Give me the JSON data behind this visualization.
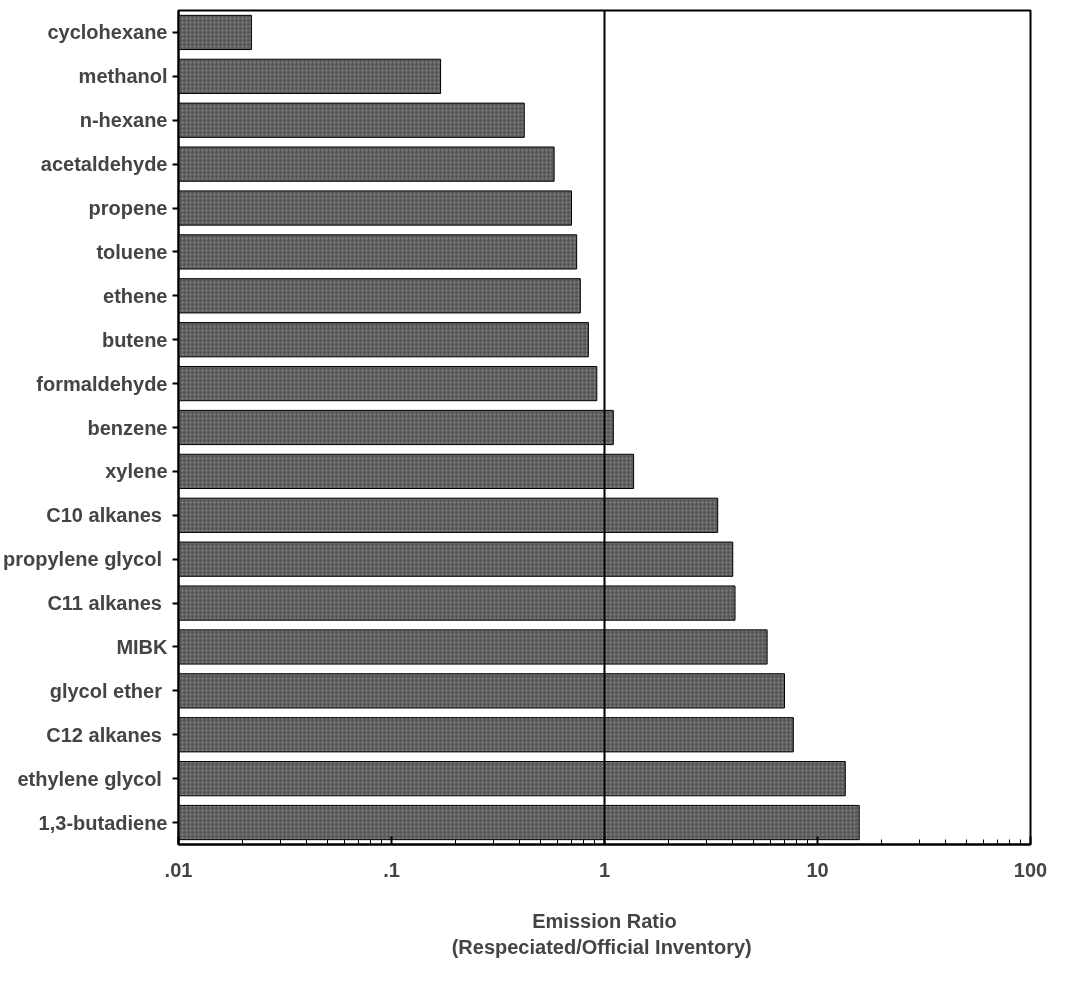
{
  "chart_data": {
    "type": "bar",
    "orientation": "horizontal",
    "log": "x",
    "xlabel": "Emission Ratio\n(Respeciated/Official  Inventory)",
    "categories": [
      "cyclohexane",
      "methanol",
      "n-hexane",
      "acetaldehyde",
      "propene",
      "toluene",
      "ethene",
      "butene",
      "formaldehyde",
      "benzene",
      "xylene",
      "C10  alkanes",
      "propylene  glycol",
      "C11  alkanes",
      "MIBK",
      "glycol  ether",
      "C12  alkanes",
      "ethylene  glycol",
      "1,3-butadiene"
    ],
    "values": [
      0.022,
      0.17,
      0.42,
      0.58,
      0.7,
      0.74,
      0.77,
      0.84,
      0.92,
      1.1,
      1.37,
      3.4,
      4.0,
      4.1,
      5.8,
      7.0,
      7.7,
      13.5,
      15.7
    ],
    "color": "#5a5a5a",
    "xlim": [
      0.01,
      100
    ],
    "xticks": [
      {
        "value": 0.01,
        "label": ".01"
      },
      {
        "value": 0.1,
        "label": ".1"
      },
      1,
      10,
      100
    ],
    "ref_lines": [
      {
        "axis": "x",
        "value": 1,
        "color": "#000000"
      }
    ],
    "grid": false
  }
}
